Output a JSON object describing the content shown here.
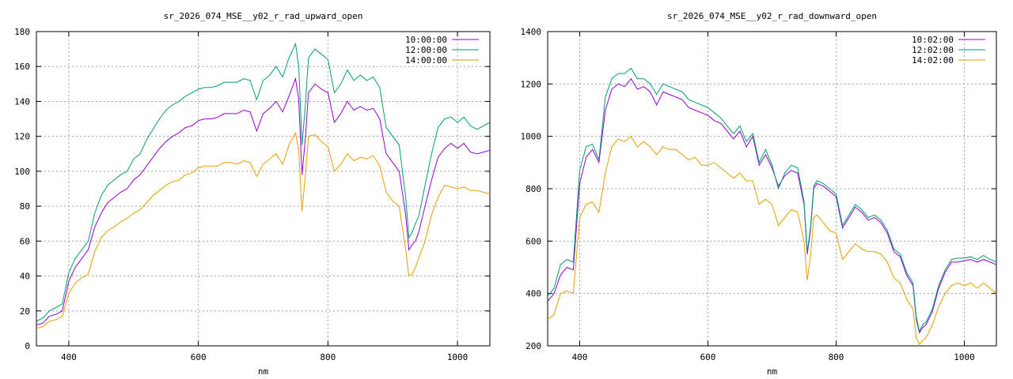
{
  "chart_data": [
    {
      "type": "line",
      "title": "sr_2026_074_MSE__y02_r_rad_upward_open",
      "xlabel": "nm",
      "ylabel": "",
      "xlim": [
        350,
        1050
      ],
      "ylim": [
        0,
        180
      ],
      "xticks": [
        400,
        600,
        800,
        1000
      ],
      "yticks": [
        0,
        20,
        40,
        60,
        80,
        100,
        120,
        140,
        160,
        180
      ],
      "grid": true,
      "legend": "top-right",
      "series": [
        {
          "name": "10:00:00",
          "color": "#9400d3",
          "x": [
            350,
            360,
            370,
            380,
            390,
            400,
            410,
            420,
            430,
            440,
            450,
            460,
            470,
            480,
            490,
            500,
            510,
            520,
            530,
            540,
            550,
            560,
            570,
            580,
            590,
            600,
            610,
            620,
            630,
            640,
            650,
            660,
            670,
            680,
            690,
            700,
            710,
            720,
            730,
            740,
            750,
            755,
            760,
            765,
            770,
            780,
            790,
            800,
            810,
            820,
            830,
            840,
            850,
            860,
            870,
            880,
            890,
            900,
            910,
            920,
            925,
            930,
            935,
            940,
            950,
            960,
            970,
            980,
            990,
            1000,
            1010,
            1020,
            1030,
            1040,
            1050
          ],
          "y": [
            12,
            13,
            17,
            18,
            20,
            37,
            45,
            50,
            55,
            68,
            76,
            82,
            85,
            88,
            90,
            95,
            98,
            103,
            108,
            113,
            117,
            120,
            122,
            125,
            126,
            129,
            130,
            130,
            131,
            133,
            133,
            133,
            135,
            134,
            123,
            133,
            136,
            140,
            134,
            143,
            153,
            141,
            98,
            118,
            145,
            150,
            147,
            145,
            128,
            133,
            140,
            135,
            137,
            135,
            136,
            130,
            110,
            105,
            100,
            75,
            55,
            58,
            60,
            65,
            80,
            95,
            108,
            113,
            116,
            113,
            116,
            111,
            110,
            111,
            112
          ]
        },
        {
          "name": "12:00:00",
          "color": "#009e73",
          "x": [
            350,
            360,
            370,
            380,
            390,
            400,
            410,
            420,
            430,
            440,
            450,
            460,
            470,
            480,
            490,
            500,
            510,
            520,
            530,
            540,
            550,
            560,
            570,
            580,
            590,
            600,
            610,
            620,
            630,
            640,
            650,
            660,
            670,
            680,
            690,
            700,
            710,
            720,
            730,
            740,
            750,
            755,
            760,
            765,
            770,
            780,
            790,
            800,
            810,
            820,
            830,
            840,
            850,
            860,
            870,
            880,
            890,
            900,
            910,
            920,
            925,
            930,
            935,
            940,
            950,
            960,
            970,
            980,
            990,
            1000,
            1010,
            1020,
            1030,
            1040,
            1050
          ],
          "y": [
            14,
            16,
            20,
            22,
            24,
            42,
            50,
            55,
            60,
            76,
            86,
            92,
            95,
            98,
            100,
            107,
            110,
            118,
            124,
            130,
            135,
            138,
            140,
            143,
            145,
            147,
            148,
            148,
            149,
            151,
            151,
            151,
            153,
            152,
            141,
            152,
            155,
            160,
            154,
            165,
            173,
            160,
            115,
            137,
            165,
            170,
            167,
            164,
            145,
            150,
            158,
            152,
            155,
            152,
            154,
            148,
            125,
            120,
            115,
            85,
            62,
            65,
            70,
            74,
            92,
            110,
            125,
            130,
            131,
            128,
            131,
            126,
            124,
            126,
            128
          ]
        },
        {
          "name": "14:00:00",
          "color": "#e69f00",
          "x": [
            350,
            360,
            370,
            380,
            390,
            400,
            410,
            420,
            430,
            440,
            450,
            460,
            470,
            480,
            490,
            500,
            510,
            520,
            530,
            540,
            550,
            560,
            570,
            580,
            590,
            600,
            610,
            620,
            630,
            640,
            650,
            660,
            670,
            680,
            690,
            700,
            710,
            720,
            730,
            740,
            750,
            755,
            760,
            765,
            770,
            780,
            790,
            800,
            810,
            820,
            830,
            840,
            850,
            860,
            870,
            880,
            890,
            900,
            910,
            920,
            925,
            930,
            935,
            940,
            950,
            960,
            970,
            980,
            990,
            1000,
            1010,
            1020,
            1030,
            1040,
            1050
          ],
          "y": [
            10,
            11,
            14,
            15,
            17,
            30,
            36,
            39,
            41,
            54,
            62,
            66,
            68,
            71,
            73,
            76,
            78,
            82,
            86,
            89,
            92,
            94,
            95,
            98,
            99,
            102,
            103,
            103,
            103,
            105,
            105,
            104,
            106,
            105,
            97,
            104,
            107,
            110,
            104,
            115,
            122,
            112,
            77,
            97,
            120,
            121,
            117,
            114,
            100,
            104,
            110,
            106,
            108,
            107,
            109,
            103,
            88,
            83,
            80,
            55,
            40,
            41,
            45,
            50,
            60,
            75,
            85,
            92,
            91,
            90,
            91,
            89,
            89,
            88,
            87
          ]
        }
      ]
    },
    {
      "type": "line",
      "title": "sr_2026_074_MSE__y02_r_rad_downward_open",
      "xlabel": "nm",
      "ylabel": "",
      "xlim": [
        350,
        1050
      ],
      "ylim": [
        200,
        1400
      ],
      "xticks": [
        400,
        600,
        800,
        1000
      ],
      "yticks": [
        200,
        400,
        600,
        800,
        1000,
        1200,
        1400
      ],
      "grid": true,
      "legend": "top-right",
      "series": [
        {
          "name": "10:02:00",
          "color": "#9400d3",
          "x": [
            350,
            360,
            370,
            380,
            390,
            400,
            410,
            420,
            430,
            440,
            450,
            460,
            470,
            480,
            490,
            500,
            510,
            520,
            530,
            540,
            550,
            560,
            570,
            580,
            590,
            600,
            610,
            620,
            630,
            640,
            650,
            660,
            670,
            680,
            690,
            700,
            710,
            720,
            730,
            740,
            750,
            755,
            760,
            765,
            770,
            780,
            790,
            800,
            810,
            820,
            830,
            840,
            850,
            860,
            870,
            880,
            890,
            900,
            910,
            920,
            925,
            930,
            935,
            940,
            950,
            960,
            970,
            980,
            990,
            1000,
            1010,
            1020,
            1030,
            1040,
            1050
          ],
          "y": [
            370,
            400,
            470,
            500,
            490,
            820,
            920,
            950,
            900,
            1100,
            1180,
            1200,
            1190,
            1220,
            1180,
            1190,
            1170,
            1120,
            1170,
            1160,
            1150,
            1140,
            1110,
            1100,
            1090,
            1080,
            1060,
            1050,
            1020,
            990,
            1020,
            960,
            1000,
            890,
            930,
            880,
            810,
            850,
            870,
            860,
            740,
            550,
            640,
            800,
            820,
            810,
            790,
            770,
            650,
            690,
            730,
            710,
            680,
            690,
            670,
            630,
            560,
            540,
            470,
            430,
            300,
            250,
            270,
            280,
            330,
            420,
            480,
            520,
            520,
            525,
            530,
            520,
            530,
            520,
            510
          ]
        },
        {
          "name": "12:02:00",
          "color": "#009e73",
          "x": [
            350,
            360,
            370,
            380,
            390,
            400,
            410,
            420,
            430,
            440,
            450,
            460,
            470,
            480,
            490,
            500,
            510,
            520,
            530,
            540,
            550,
            560,
            570,
            580,
            590,
            600,
            610,
            620,
            630,
            640,
            650,
            660,
            670,
            680,
            690,
            700,
            710,
            720,
            730,
            740,
            750,
            755,
            760,
            765,
            770,
            780,
            790,
            800,
            810,
            820,
            830,
            840,
            850,
            860,
            870,
            880,
            890,
            900,
            910,
            920,
            925,
            930,
            935,
            940,
            950,
            960,
            970,
            980,
            990,
            1000,
            1010,
            1020,
            1030,
            1040,
            1050
          ],
          "y": [
            390,
            420,
            510,
            530,
            520,
            870,
            960,
            970,
            910,
            1150,
            1220,
            1240,
            1240,
            1260,
            1220,
            1220,
            1200,
            1160,
            1200,
            1190,
            1180,
            1170,
            1140,
            1130,
            1120,
            1110,
            1090,
            1070,
            1040,
            1010,
            1040,
            980,
            1010,
            900,
            950,
            890,
            800,
            860,
            890,
            880,
            750,
            560,
            650,
            810,
            830,
            820,
            800,
            780,
            660,
            700,
            740,
            720,
            690,
            700,
            680,
            640,
            570,
            550,
            480,
            440,
            310,
            255,
            280,
            290,
            340,
            430,
            490,
            530,
            535,
            535,
            540,
            530,
            545,
            530,
            520
          ]
        },
        {
          "name": "14:02:00",
          "color": "#e69f00",
          "x": [
            350,
            360,
            370,
            380,
            390,
            400,
            410,
            420,
            430,
            440,
            450,
            460,
            470,
            480,
            490,
            500,
            510,
            520,
            530,
            540,
            550,
            560,
            570,
            580,
            590,
            600,
            610,
            620,
            630,
            640,
            650,
            660,
            670,
            680,
            690,
            700,
            710,
            720,
            730,
            740,
            750,
            755,
            760,
            765,
            770,
            780,
            790,
            800,
            810,
            820,
            830,
            840,
            850,
            860,
            870,
            880,
            890,
            900,
            910,
            920,
            925,
            930,
            935,
            940,
            950,
            960,
            970,
            980,
            990,
            1000,
            1010,
            1020,
            1030,
            1040,
            1050
          ],
          "y": [
            300,
            320,
            400,
            410,
            400,
            690,
            740,
            750,
            710,
            860,
            960,
            990,
            980,
            1000,
            960,
            980,
            960,
            930,
            960,
            950,
            950,
            930,
            910,
            920,
            890,
            890,
            900,
            880,
            860,
            840,
            860,
            830,
            830,
            740,
            760,
            740,
            660,
            690,
            720,
            710,
            600,
            450,
            540,
            690,
            700,
            670,
            640,
            630,
            530,
            560,
            590,
            570,
            560,
            560,
            550,
            520,
            460,
            440,
            380,
            340,
            230,
            205,
            220,
            230,
            280,
            350,
            400,
            430,
            440,
            430,
            440,
            420,
            440,
            420,
            400
          ]
        }
      ]
    }
  ]
}
